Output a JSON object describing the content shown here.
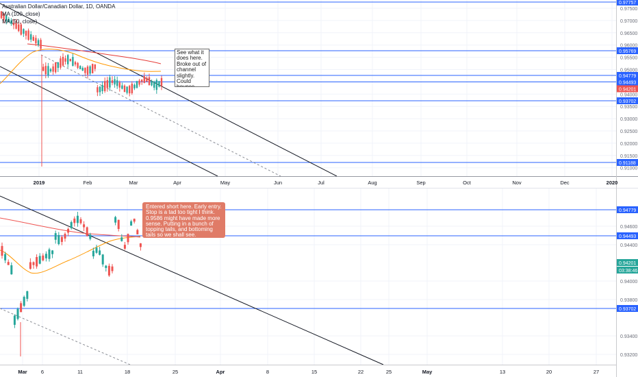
{
  "legend": {
    "title": "Australian Dollar/Canadian Dollar, 1D, OANDA",
    "ma100": "MA (100, close)",
    "ma50": "MA (50, close)"
  },
  "notes": {
    "top": "See what it does here. Broke out of channel slightly. Could bounce higher, or re-enter and go lower.",
    "bottom": "Entered short here. Early entry. Stop is a tad too tight I think. 0.9586 might have made more sense. Putting in a bunch of topping tails, and bottoming tails so we shall see."
  },
  "colors": {
    "up": "#26a69a",
    "down": "#ef5350",
    "hline": "#2962ff",
    "ma100": "#e53935",
    "ma50": "#ff9800",
    "price_badge": "#ef5350",
    "timer_badge": "#26a69a",
    "note_bg": "#e07b67"
  },
  "top_panel": {
    "ticks": [
      "0.97500",
      "0.97000",
      "0.96500",
      "0.96000",
      "0.95500",
      "0.95000",
      "0.94500",
      "0.94000",
      "0.93500",
      "0.93000",
      "0.92500",
      "0.92000",
      "0.91500",
      "0.91000"
    ],
    "hline_labels": [
      "0.97757",
      "0.95769",
      "0.94779",
      "0.94493",
      "0.93702",
      "0.91188"
    ],
    "price_label": "0.94201",
    "time_labels": [
      "2019",
      "Feb",
      "Mar",
      "Apr",
      "May",
      "Jun",
      "Jul",
      "Aug",
      "Sep",
      "Oct",
      "Nov",
      "Dec",
      "2020"
    ]
  },
  "bottom_panel": {
    "ticks": [
      "0.94600",
      "0.94400",
      "0.94000",
      "0.93800",
      "0.93400",
      "0.93200"
    ],
    "hline_labels": [
      "0.94779",
      "0.94493",
      "0.93702"
    ],
    "price_label": "0.94201",
    "timer_label": "03:38:46",
    "time_labels": [
      "Mar",
      "6",
      "11",
      "18",
      "25",
      "Apr",
      "8",
      "15",
      "22",
      "25",
      "May",
      "13",
      "20",
      "27"
    ]
  },
  "chart_data": {
    "type": "candlestick",
    "symbol": "Australian Dollar/Canadian Dollar, 1D, OANDA",
    "last_price": 0.94201,
    "horizontal_levels": [
      0.97757,
      0.95769,
      0.94779,
      0.94493,
      0.93702,
      0.91188
    ],
    "series": [
      {
        "name": "MA (100, close)"
      },
      {
        "name": "MA (50, close)"
      }
    ]
  }
}
